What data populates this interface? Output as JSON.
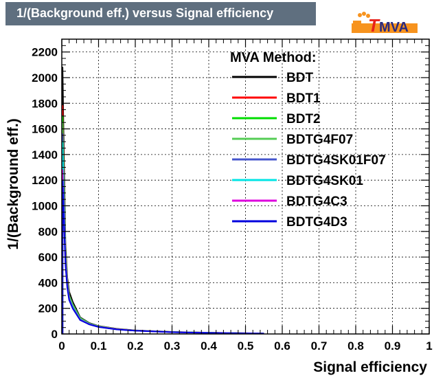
{
  "title": "1/(Background eff.) versus Signal efficiency",
  "logo": {
    "letter_t": "T",
    "letters_mva": "MVA"
  },
  "chart_data": {
    "type": "line",
    "title": "1/(Background eff.) versus Signal efficiency",
    "xlabel": "Signal efficiency",
    "ylabel": "1/(Background eff.)",
    "xlim": [
      0,
      1
    ],
    "ylim": [
      0,
      2300
    ],
    "xticks": [
      "0",
      "0.1",
      "0.2",
      "0.3",
      "0.4",
      "0.5",
      "0.6",
      "0.7",
      "0.8",
      "0.9",
      "1"
    ],
    "yticks": [
      "0",
      "200",
      "400",
      "600",
      "800",
      "1000",
      "1200",
      "1400",
      "1600",
      "1800",
      "2000",
      "2200"
    ],
    "grid": true,
    "legend_title": "MVA Method:",
    "legend_position": "top-right",
    "x": [
      0.002,
      0.005,
      0.01,
      0.015,
      0.02,
      0.03,
      0.05,
      0.075,
      0.1,
      0.15,
      0.2,
      0.3,
      0.4,
      0.5,
      0.55
    ],
    "series": [
      {
        "name": "BDT",
        "color": "#000000",
        "values": [
          2080,
          1500,
          700,
          440,
          330,
          250,
          130,
          85,
          62,
          40,
          28,
          16,
          10,
          6,
          4
        ]
      },
      {
        "name": "BDT1",
        "color": "#ff0000",
        "values": [
          1780,
          1300,
          650,
          420,
          300,
          220,
          120,
          80,
          60,
          38,
          27,
          15,
          9,
          5,
          3
        ]
      },
      {
        "name": "BDT2",
        "color": "#00dd00",
        "values": [
          1700,
          1250,
          620,
          400,
          290,
          215,
          118,
          78,
          58,
          37,
          26,
          15,
          9,
          5,
          3
        ]
      },
      {
        "name": "BDTG4F07",
        "color": "#55cc55",
        "values": [
          1650,
          1200,
          640,
          410,
          300,
          230,
          125,
          82,
          60,
          38,
          27,
          15,
          9,
          5,
          3
        ]
      },
      {
        "name": "BDTG4SK01F07",
        "color": "#4455cc",
        "values": [
          1560,
          1150,
          600,
          390,
          280,
          210,
          115,
          78,
          57,
          37,
          26,
          15,
          9,
          5,
          3
        ]
      },
      {
        "name": "BDTG4SK01",
        "color": "#00e5e5",
        "values": [
          1500,
          1100,
          580,
          380,
          275,
          205,
          112,
          76,
          56,
          36,
          25,
          14,
          8,
          5,
          3
        ]
      },
      {
        "name": "BDTG4C3",
        "color": "#dd00dd",
        "values": [
          1280,
          1000,
          560,
          370,
          270,
          200,
          110,
          75,
          55,
          36,
          25,
          14,
          8,
          5,
          3
        ]
      },
      {
        "name": "BDTG4D3",
        "color": "#0000dd",
        "values": [
          1200,
          950,
          540,
          360,
          265,
          198,
          108,
          74,
          54,
          35,
          25,
          14,
          8,
          5,
          3
        ]
      }
    ]
  }
}
